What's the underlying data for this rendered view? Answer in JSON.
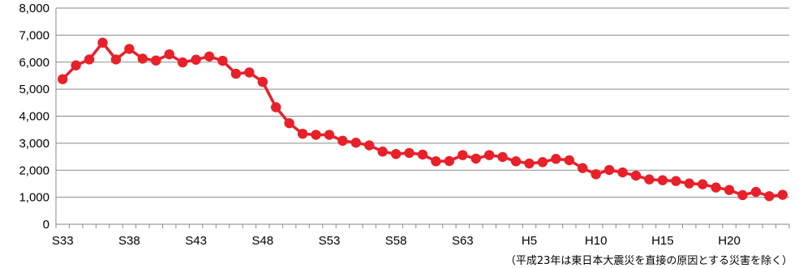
{
  "chart_data": {
    "type": "line",
    "title": "",
    "xlabel": "",
    "ylabel": "",
    "ylim": [
      0,
      8000
    ],
    "y_ticks": [
      "0",
      "1,000",
      "2,000",
      "3,000",
      "4,000",
      "5,000",
      "6,000",
      "7,000",
      "8,000"
    ],
    "x_tick_labels": [
      "S33",
      "S38",
      "S43",
      "S48",
      "S53",
      "S58",
      "S63",
      "H5",
      "H10",
      "H15",
      "H20"
    ],
    "x_tick_indices": [
      0,
      5,
      10,
      15,
      20,
      25,
      30,
      35,
      40,
      45,
      50
    ],
    "x": [
      "S33",
      "S34",
      "S35",
      "S36",
      "S37",
      "S38",
      "S39",
      "S40",
      "S41",
      "S42",
      "S43",
      "S44",
      "S45",
      "S46",
      "S47",
      "S48",
      "S49",
      "S50",
      "S51",
      "S52",
      "S53",
      "S54",
      "S55",
      "S56",
      "S57",
      "S58",
      "S59",
      "S60",
      "S61",
      "S62",
      "S63",
      "H1",
      "H2",
      "H3",
      "H4",
      "H5",
      "H6",
      "H7",
      "H8",
      "H9",
      "H10",
      "H11",
      "H12",
      "H13",
      "H14",
      "H15",
      "H16",
      "H17",
      "H18",
      "H19",
      "H20",
      "H21",
      "H22",
      "H23",
      "H24"
    ],
    "series": [
      {
        "color": "#e8202a",
        "values": [
          5370,
          5880,
          6100,
          6720,
          6100,
          6490,
          6130,
          6060,
          6290,
          5990,
          6090,
          6210,
          6050,
          5570,
          5620,
          5270,
          4330,
          3740,
          3350,
          3310,
          3310,
          3090,
          3020,
          2920,
          2690,
          2600,
          2640,
          2580,
          2330,
          2340,
          2560,
          2430,
          2560,
          2490,
          2330,
          2250,
          2300,
          2420,
          2370,
          2080,
          1850,
          2010,
          1920,
          1800,
          1660,
          1630,
          1600,
          1510,
          1480,
          1360,
          1270,
          1080,
          1200,
          1040,
          1090
        ]
      }
    ],
    "grid": true,
    "legend": "none"
  },
  "footnote": "（平成23年は東日本大震災を直接の原因とする災害を除く）"
}
